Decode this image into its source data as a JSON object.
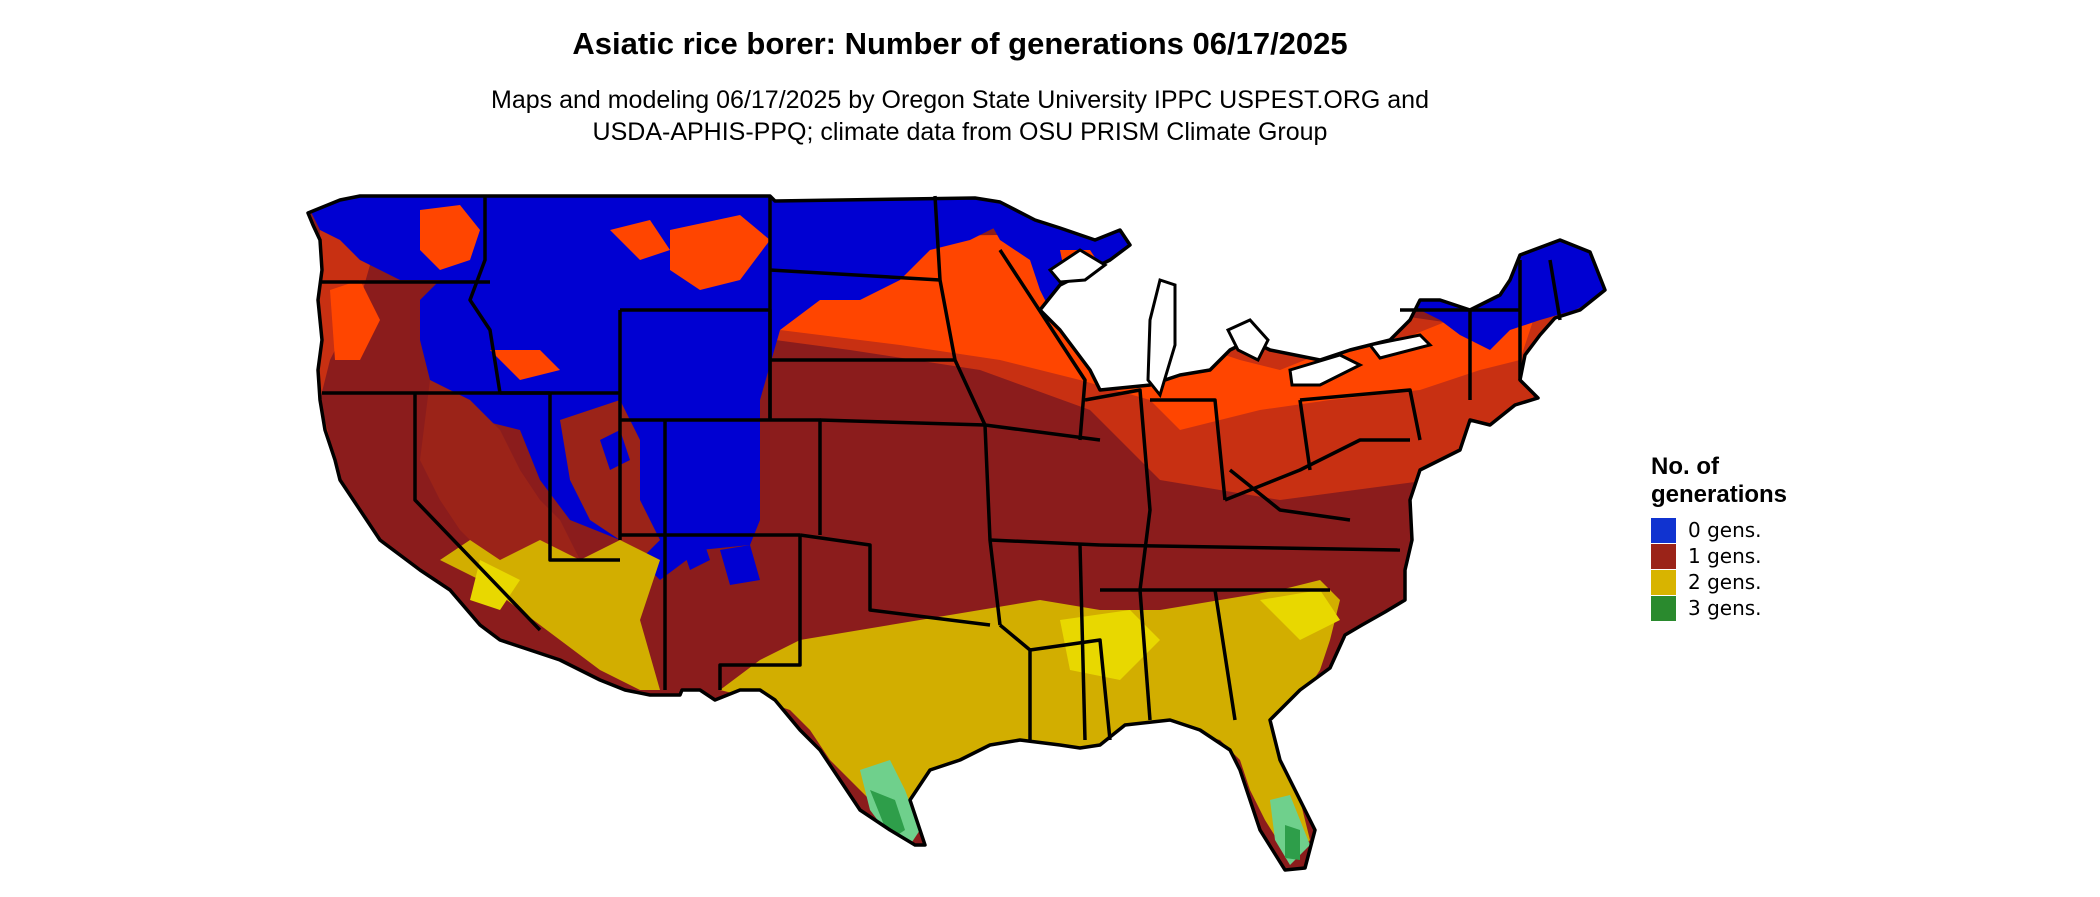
{
  "title": "Asiatic rice borer: Number of generations 06/17/2025",
  "subtitle_lines": [
    "Maps and modeling 06/17/2025 by Oregon State University IPPC USPEST.ORG and",
    "USDA-APHIS-PPQ; climate data from OSU PRISM Climate Group"
  ],
  "legend": {
    "title_lines": [
      "No. of",
      "generations"
    ],
    "items": [
      {
        "label": "0 gens.",
        "color": "#1033d0"
      },
      {
        "label": "1 gens.",
        "color": "#9b2318"
      },
      {
        "label": "2 gens.",
        "color": "#d8b400"
      },
      {
        "label": "3 gens.",
        "color": "#2a8a2e"
      }
    ]
  },
  "colors": {
    "zero_gens": "#0000d2",
    "one_gen_early": "#ff4500",
    "one_gen_mid": "#c83012",
    "one_gen_late": "#8b1c1c",
    "two_gens": "#d2ae00",
    "two_gens_light": "#e8d800",
    "three_gens": "#2e9e4a",
    "three_gens_light": "#6fd08c",
    "state_borders": "#000000"
  }
}
